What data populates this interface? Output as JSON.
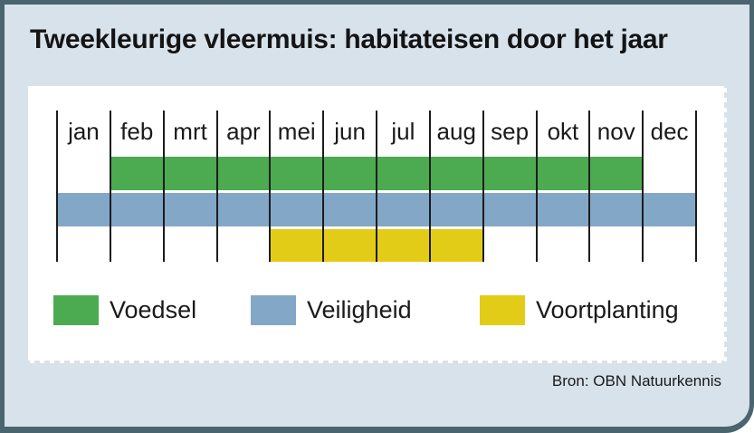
{
  "title": "Tweekleurige vleermuis: habitateisen door het jaar",
  "source": "Bron: OBN Natuurkennis",
  "colors": {
    "card_border": "#4a656e",
    "card_background": "#d8e2eb",
    "panel_background": "#ffffff",
    "grid_line": "#1c1c1c",
    "text": "#1a1a1a",
    "voedsel_green": "#4cab50",
    "veiligheid_blue": "#83a7c7",
    "voortplanting_yellow": "#e3cc17"
  },
  "chart_data": {
    "type": "bar",
    "subtype": "gantt-month-timeline",
    "title": "Tweekleurige vleermuis: habitateisen door het jaar",
    "categories": [
      "jan",
      "feb",
      "mrt",
      "apr",
      "mei",
      "jun",
      "jul",
      "aug",
      "sep",
      "okt",
      "nov",
      "dec"
    ],
    "series": [
      {
        "name": "Voedsel",
        "color": "#4cab50",
        "start_month": "feb",
        "end_month": "nov",
        "start_index": 2,
        "end_index": 11
      },
      {
        "name": "Veiligheid",
        "color": "#83a7c7",
        "start_month": "jan",
        "end_month": "dec",
        "start_index": 1,
        "end_index": 12
      },
      {
        "name": "Voortplanting",
        "color": "#e3cc17",
        "start_month": "mei",
        "end_month": "aug",
        "start_index": 5,
        "end_index": 8
      }
    ],
    "x_range": [
      "jan",
      "dec"
    ],
    "grid": "vertical month separator lines only",
    "legend_position": "bottom",
    "source": "Bron: OBN Natuurkennis"
  }
}
